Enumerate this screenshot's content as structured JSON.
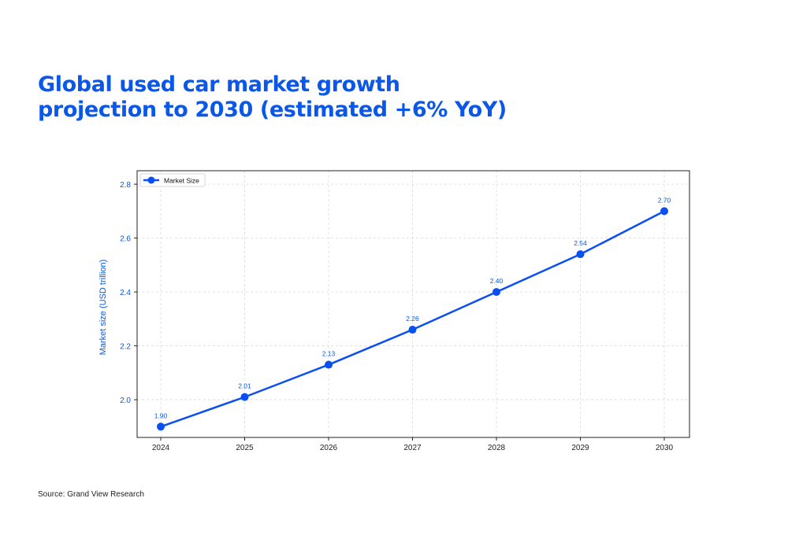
{
  "title": {
    "line1": "Global used car market growth",
    "line2": "projection to 2030 (estimated +6% YoY)"
  },
  "source": "Source: Grand View Research",
  "colors": {
    "accent": "#0a57e8",
    "line": "#0a4ff0",
    "text": "#222222",
    "grid": "#d9d9d9"
  },
  "chart_data": {
    "type": "line",
    "categories": [
      "2024",
      "2025",
      "2026",
      "2027",
      "2028",
      "2029",
      "2030"
    ],
    "series": [
      {
        "name": "Market Size",
        "values": [
          1.9,
          2.01,
          2.13,
          2.26,
          2.4,
          2.54,
          2.7
        ],
        "labels": [
          "1.90",
          "2.01",
          "2.13",
          "2.26",
          "2.40",
          "2.54",
          "2.70"
        ],
        "marker": "circle"
      }
    ],
    "ylabel": "Market size (USD trillion)",
    "xlabel": "",
    "ylim": [
      1.86,
      2.85
    ],
    "yticks": [
      2.0,
      2.2,
      2.4,
      2.6,
      2.8
    ],
    "ytick_labels": [
      "2.0",
      "2.2",
      "2.4",
      "2.6",
      "2.8"
    ],
    "grid": true,
    "legend": "top-left"
  }
}
